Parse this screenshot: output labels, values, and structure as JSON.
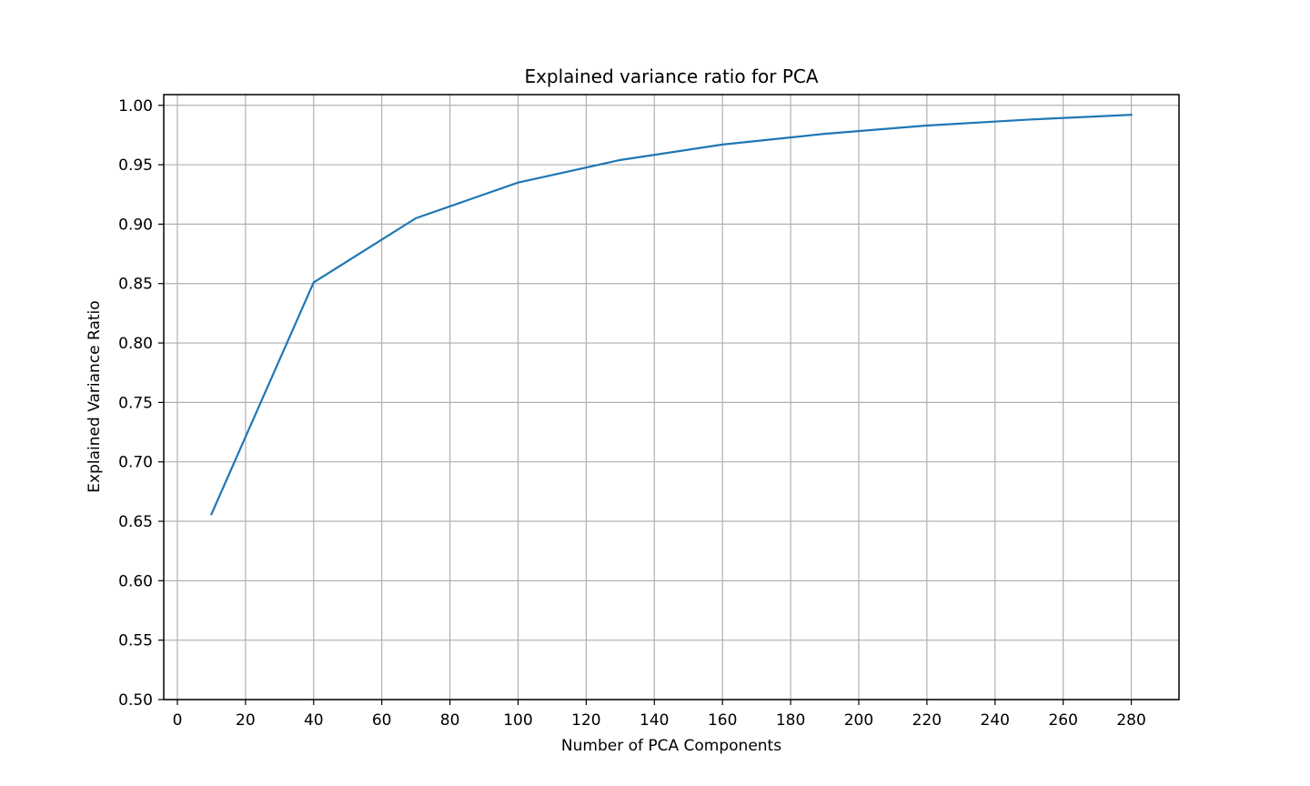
{
  "chart_data": {
    "type": "line",
    "title": "Explained variance ratio for PCA",
    "xlabel": "Number of PCA Components",
    "ylabel": "Explained Variance Ratio",
    "xlim": [
      -4,
      294
    ],
    "ylim": [
      0.5,
      1.009
    ],
    "xticks": [
      0,
      20,
      40,
      60,
      80,
      100,
      120,
      140,
      160,
      180,
      200,
      220,
      240,
      260,
      280
    ],
    "yticks": [
      0.5,
      0.55,
      0.6,
      0.65,
      0.7,
      0.75,
      0.8,
      0.85,
      0.9,
      0.95,
      1.0
    ],
    "xtick_labels": [
      "0",
      "20",
      "40",
      "60",
      "80",
      "100",
      "120",
      "140",
      "160",
      "180",
      "200",
      "220",
      "240",
      "260",
      "280"
    ],
    "ytick_labels": [
      "0.50",
      "0.55",
      "0.60",
      "0.65",
      "0.70",
      "0.75",
      "0.80",
      "0.85",
      "0.90",
      "0.95",
      "1.00"
    ],
    "grid": true,
    "series": [
      {
        "color": "#1f77b4",
        "x": [
          10,
          40,
          70,
          100,
          130,
          160,
          190,
          220,
          250,
          280
        ],
        "values": [
          0.656,
          0.851,
          0.905,
          0.935,
          0.954,
          0.967,
          0.976,
          0.983,
          0.988,
          0.992
        ]
      }
    ]
  }
}
